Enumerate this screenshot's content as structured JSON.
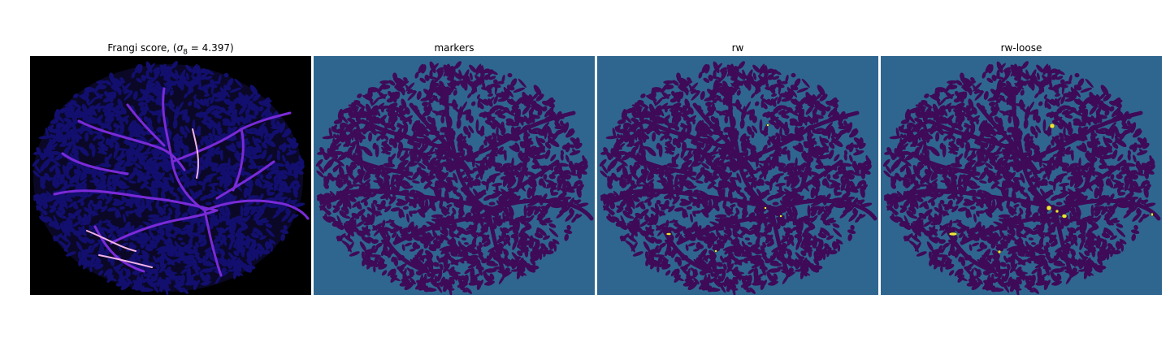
{
  "figure": {
    "panels": [
      {
        "id": "frangi",
        "title_prefix": "Frangi score, (",
        "title_sigma_symbol": "σ",
        "title_sigma_sub": "8",
        "title_sigma_value": " = 4.397)",
        "colormap": "magma",
        "background": "#000000",
        "blob": "#120f6e",
        "vessel": "#7a2ad8",
        "highlight": "#f3b2e8"
      },
      {
        "id": "markers",
        "title": "markers",
        "background": "#2f6690",
        "blob": "#3f0a58"
      },
      {
        "id": "rw",
        "title": "rw",
        "background": "#2f6690",
        "blob": "#3f0a58",
        "mark": "#f0e636"
      },
      {
        "id": "rw-loose",
        "title": "rw-loose",
        "background": "#2f6690",
        "blob": "#3f0a58",
        "mark": "#f0e636"
      }
    ]
  }
}
